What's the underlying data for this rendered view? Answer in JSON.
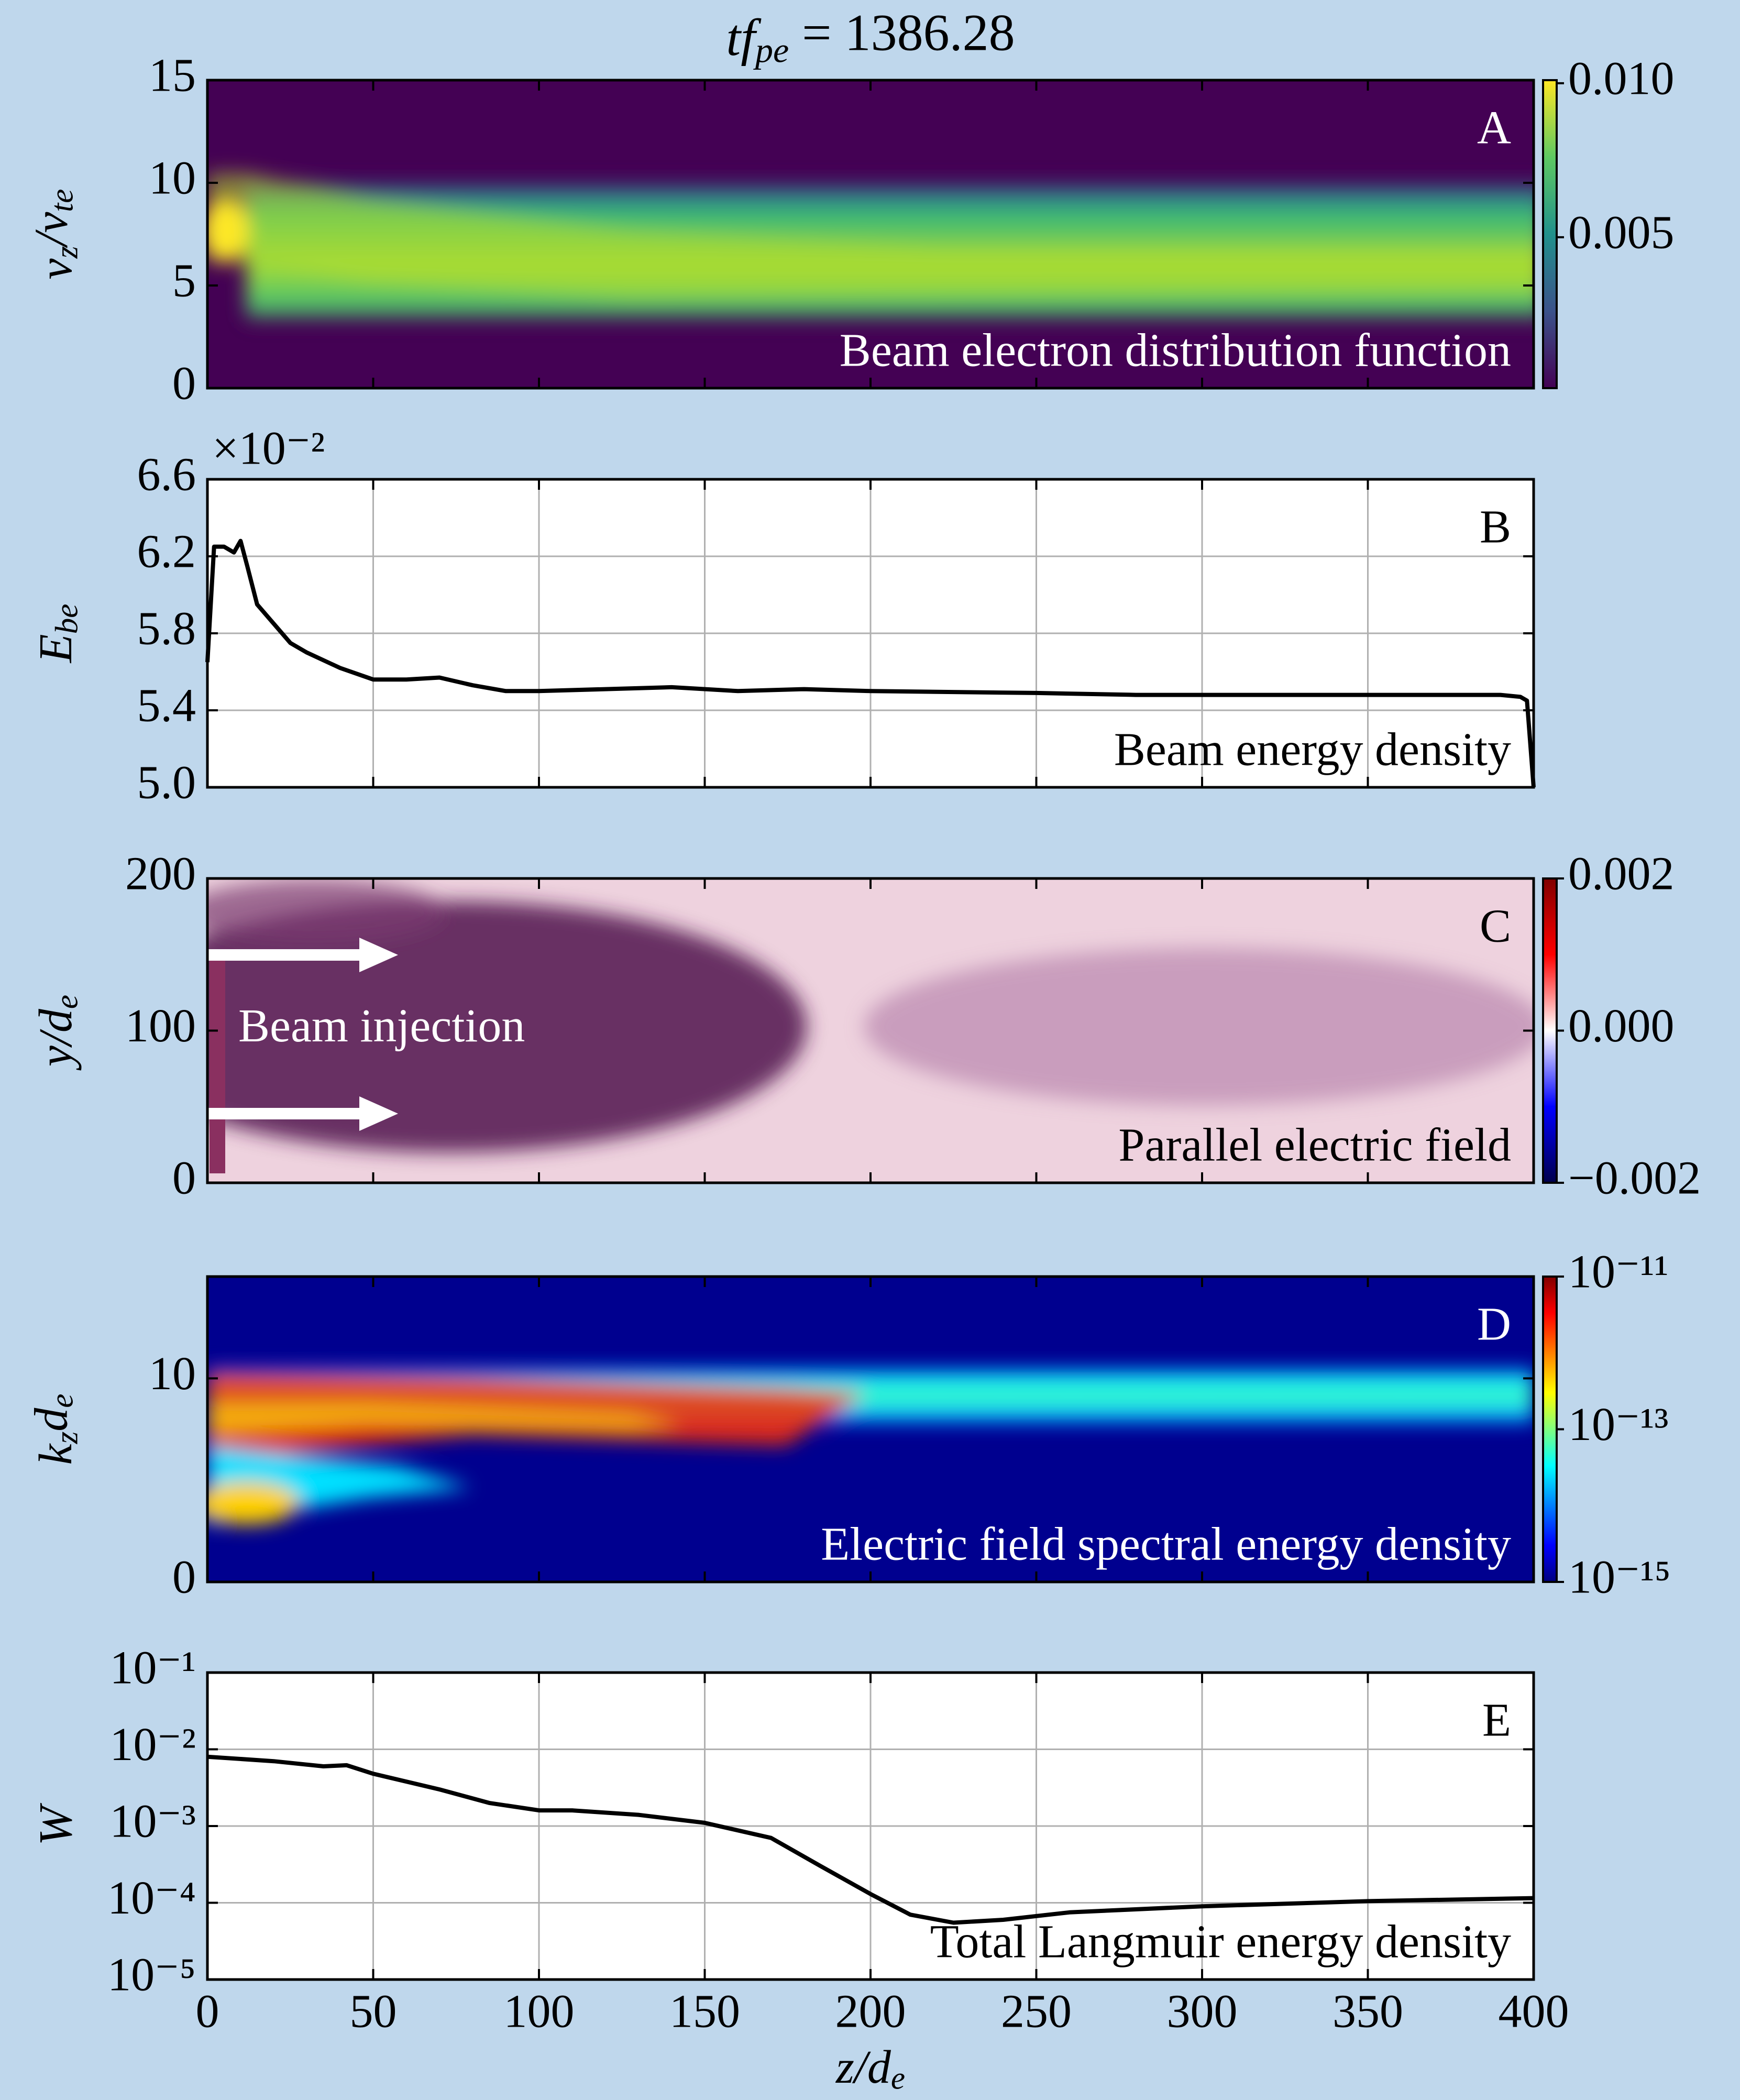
{
  "chart_data": [
    {
      "type": "heatmap",
      "title": [
        "tf",
        "pe",
        " = 1386.28"
      ],
      "panel_label": "A",
      "annotation": "Beam electron distribution function",
      "text_color": "#ffffff",
      "ylabel": [
        "v",
        "z",
        "/v",
        "te"
      ],
      "xlim": [
        0,
        400
      ],
      "xticks": [
        0,
        50,
        100,
        150,
        200,
        250,
        300,
        350,
        400
      ],
      "ylim": [
        0,
        15
      ],
      "yticks": [
        0,
        5,
        10,
        15
      ],
      "colorbar": {
        "colormap": "viridis",
        "lim": [
          0.0001,
          0.0101
        ],
        "ticks": [
          0.005,
          {
            "value": 0.01,
            "label": "0.010"
          }
        ]
      }
    },
    {
      "type": "line",
      "panel_label": "B",
      "annotation": "Beam energy density",
      "text_color": "#000000",
      "ylabel": [
        "E",
        "be"
      ],
      "offset_text": "×10⁻²",
      "color": "#000000",
      "grid": true,
      "xlim": [
        0,
        400
      ],
      "xticks": [
        0,
        50,
        100,
        150,
        200,
        250,
        300,
        350,
        400
      ],
      "ylim": [
        5,
        6.6
      ],
      "yticks": [
        {
          "value": 5,
          "label": "5.0"
        },
        5.4,
        5.8,
        6.2,
        6.6
      ],
      "x": [
        0,
        2,
        5,
        8,
        10,
        12,
        15,
        20,
        25,
        30,
        40,
        50,
        60,
        70,
        80,
        90,
        100,
        120,
        140,
        160,
        180,
        200,
        250,
        280,
        300,
        350,
        390,
        396,
        398,
        400
      ],
      "values": [
        5.65,
        6.25,
        6.25,
        6.22,
        6.28,
        6.15,
        5.95,
        5.85,
        5.75,
        5.7,
        5.62,
        5.56,
        5.56,
        5.57,
        5.53,
        5.5,
        5.5,
        5.51,
        5.52,
        5.5,
        5.51,
        5.5,
        5.49,
        5.48,
        5.48,
        5.48,
        5.48,
        5.47,
        5.45,
        5.0
      ]
    },
    {
      "type": "heatmap",
      "panel_label": "C",
      "annotation": "Parallel electric field",
      "text_color": "#000000",
      "inset_text": "Beam injection",
      "ylabel": [
        "y/d",
        "e"
      ],
      "xlim": [
        0,
        400
      ],
      "xticks": [
        0,
        50,
        100,
        150,
        200,
        250,
        300,
        350,
        400
      ],
      "ylim": [
        0,
        200
      ],
      "yticks": [
        0,
        100,
        200
      ],
      "colorbar": {
        "colormap": "seismic",
        "lim": [
          -0.002,
          0.002
        ],
        "ticks": [
          {
            "value": -0.002,
            "label": "−0.002"
          },
          {
            "value": 0,
            "label": "0.000"
          },
          0.002
        ]
      }
    },
    {
      "type": "heatmap",
      "panel_label": "D",
      "annotation": "Electric field spectral energy density",
      "text_color": "#ffffff",
      "ylabel": [
        "k",
        "z",
        "d",
        "e"
      ],
      "xlim": [
        0,
        400
      ],
      "xticks": [
        0,
        50,
        100,
        150,
        200,
        250,
        300,
        350,
        400
      ],
      "ylim": [
        0,
        15
      ],
      "yticks": [
        0,
        10
      ],
      "colorbar": {
        "colormap": "jet",
        "log": true,
        "lim": [
          1e-15,
          1e-11
        ],
        "ticks": [
          {
            "value": 1e-15,
            "label": "10⁻¹⁵"
          },
          {
            "value": 1e-13,
            "label": "10⁻¹³"
          },
          {
            "value": 1e-11,
            "label": "10⁻¹¹"
          }
        ]
      }
    },
    {
      "type": "line",
      "panel_label": "E",
      "annotation": "Total Langmuir energy density",
      "text_color": "#000000",
      "ylabel": [
        "W"
      ],
      "xlabel": [
        "z/d",
        "e"
      ],
      "color": "#000000",
      "grid": true,
      "log": true,
      "xtick_labels": true,
      "xlim": [
        0,
        400
      ],
      "xticks": [
        0,
        50,
        100,
        150,
        200,
        250,
        300,
        350,
        400
      ],
      "ylim": [
        1e-05,
        0.1
      ],
      "yticks": [
        {
          "value": 1e-05,
          "label": "10⁻⁵"
        },
        {
          "value": 0.0001,
          "label": "10⁻⁴"
        },
        {
          "value": 0.001,
          "label": "10⁻³"
        },
        {
          "value": 0.01,
          "label": "10⁻²"
        },
        {
          "value": 0.1,
          "label": "10⁻¹"
        }
      ],
      "x": [
        0,
        20,
        35,
        42,
        50,
        70,
        85,
        100,
        110,
        130,
        150,
        170,
        185,
        200,
        212,
        225,
        240,
        260,
        300,
        350,
        400
      ],
      "values": [
        0.008,
        0.007,
        0.006,
        0.0062,
        0.0048,
        0.003,
        0.002,
        0.0016,
        0.0016,
        0.0014,
        0.0011,
        0.0007,
        0.0003,
        0.00013,
        7e-05,
        5.5e-05,
        6e-05,
        7.5e-05,
        9e-05,
        0.000105,
        0.000115
      ]
    }
  ]
}
